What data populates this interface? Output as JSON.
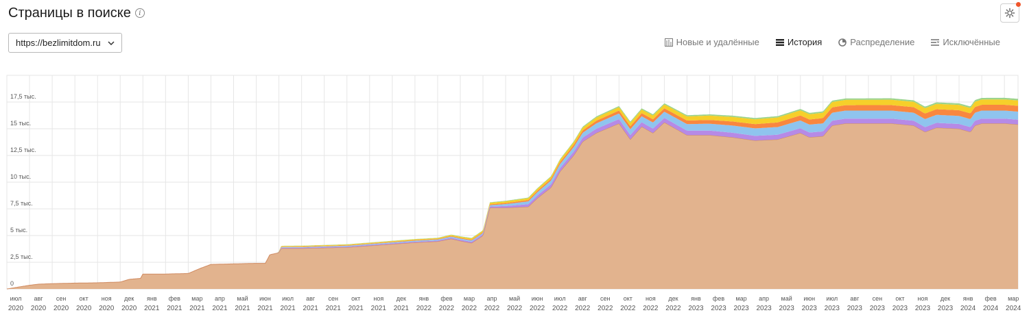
{
  "page": {
    "title": "Страницы в поиске"
  },
  "site_select": {
    "value": "https://bezlimitdom.ru"
  },
  "tabs": [
    {
      "label": "Новые и удалённые",
      "icon": "bar-chart-icon"
    },
    {
      "label": "История",
      "icon": "stacked-layers-icon",
      "active": true
    },
    {
      "label": "Распределение",
      "icon": "pie-chart-icon"
    },
    {
      "label": "Исключённые",
      "icon": "filter-list-icon"
    }
  ],
  "colors": {
    "base": "#e2b38e",
    "base_line": "#d08a60",
    "purple": "#b68ae6",
    "blue": "#8fc4ee",
    "orange": "#f9873f",
    "yellow": "#f6cf2a",
    "green": "#9bd38a",
    "grid": "#e6e6e6",
    "tick": "#555555"
  },
  "chart_data": {
    "type": "area",
    "stacked": true,
    "grid": true,
    "ylim": [
      0,
      20000
    ],
    "yticks": [
      0,
      2500,
      5000,
      7500,
      10000,
      12500,
      15000,
      17500
    ],
    "ytick_labels": [
      "0",
      "2,5 тыс.",
      "5 тыс.",
      "7,5 тыс.",
      "10 тыс.",
      "12,5 тыс.",
      "15 тыс.",
      "17,5 тыс."
    ],
    "x_ticks": [
      {
        "m": "июл",
        "y": "2020"
      },
      {
        "m": "авг",
        "y": "2020"
      },
      {
        "m": "сен",
        "y": "2020"
      },
      {
        "m": "окт",
        "y": "2020"
      },
      {
        "m": "ноя",
        "y": "2020"
      },
      {
        "m": "дек",
        "y": "2020"
      },
      {
        "m": "янв",
        "y": "2021"
      },
      {
        "m": "фев",
        "y": "2021"
      },
      {
        "m": "мар",
        "y": "2021"
      },
      {
        "m": "апр",
        "y": "2021"
      },
      {
        "m": "май",
        "y": "2021"
      },
      {
        "m": "июн",
        "y": "2021"
      },
      {
        "m": "июл",
        "y": "2021"
      },
      {
        "m": "авг",
        "y": "2021"
      },
      {
        "m": "сен",
        "y": "2021"
      },
      {
        "m": "окт",
        "y": "2021"
      },
      {
        "m": "ноя",
        "y": "2021"
      },
      {
        "m": "дек",
        "y": "2021"
      },
      {
        "m": "янв",
        "y": "2022"
      },
      {
        "m": "фев",
        "y": "2022"
      },
      {
        "m": "мар",
        "y": "2022"
      },
      {
        "m": "апр",
        "y": "2022"
      },
      {
        "m": "май",
        "y": "2022"
      },
      {
        "m": "июн",
        "y": "2022"
      },
      {
        "m": "июл",
        "y": "2022"
      },
      {
        "m": "авг",
        "y": "2022"
      },
      {
        "m": "сен",
        "y": "2022"
      },
      {
        "m": "окт",
        "y": "2022"
      },
      {
        "m": "ноя",
        "y": "2022"
      },
      {
        "m": "дек",
        "y": "2022"
      },
      {
        "m": "янв",
        "y": "2023"
      },
      {
        "m": "фев",
        "y": "2023"
      },
      {
        "m": "мар",
        "y": "2023"
      },
      {
        "m": "апр",
        "y": "2023"
      },
      {
        "m": "май",
        "y": "2023"
      },
      {
        "m": "июн",
        "y": "2023"
      },
      {
        "m": "июл",
        "y": "2023"
      },
      {
        "m": "авг",
        "y": "2023"
      },
      {
        "m": "сен",
        "y": "2023"
      },
      {
        "m": "окт",
        "y": "2023"
      },
      {
        "m": "ноя",
        "y": "2023"
      },
      {
        "m": "дек",
        "y": "2023"
      },
      {
        "m": "янв",
        "y": "2024"
      },
      {
        "m": "фев",
        "y": "2024"
      },
      {
        "m": "мар",
        "y": "2024"
      }
    ],
    "x_range": [
      0,
      44.6
    ],
    "series": [
      {
        "color": "base",
        "points": [
          [
            0,
            0
          ],
          [
            1.0,
            350
          ],
          [
            1.4,
            450
          ],
          [
            2,
            500
          ],
          [
            3,
            550
          ],
          [
            4,
            580
          ],
          [
            5,
            650
          ],
          [
            5.4,
            900
          ],
          [
            5.9,
            1000
          ],
          [
            6,
            1400
          ],
          [
            7,
            1400
          ],
          [
            8,
            1450
          ],
          [
            8.5,
            1900
          ],
          [
            9,
            2300
          ],
          [
            10,
            2350
          ],
          [
            11,
            2400
          ],
          [
            11.4,
            2400
          ],
          [
            11.6,
            3200
          ],
          [
            12,
            3400
          ],
          [
            12.1,
            3800
          ],
          [
            13,
            3800
          ],
          [
            14,
            3850
          ],
          [
            15,
            3900
          ],
          [
            16,
            4050
          ],
          [
            17,
            4200
          ],
          [
            18,
            4350
          ],
          [
            19,
            4450
          ],
          [
            19.6,
            4700
          ],
          [
            20,
            4500
          ],
          [
            20.5,
            4300
          ],
          [
            21,
            5000
          ],
          [
            21.3,
            7600
          ],
          [
            22,
            7600
          ],
          [
            23,
            7700
          ],
          [
            23.4,
            8500
          ],
          [
            24,
            9500
          ],
          [
            24.4,
            11000
          ],
          [
            25,
            12500
          ],
          [
            25.4,
            13800
          ],
          [
            26,
            14600
          ],
          [
            27,
            15500
          ],
          [
            27.5,
            14000
          ],
          [
            28,
            15200
          ],
          [
            28.5,
            14600
          ],
          [
            29,
            15600
          ],
          [
            30,
            14400
          ],
          [
            31,
            14400
          ],
          [
            32,
            14200
          ],
          [
            33,
            13900
          ],
          [
            34,
            14000
          ],
          [
            35,
            14600
          ],
          [
            35.4,
            14200
          ],
          [
            36,
            14300
          ],
          [
            36.4,
            15300
          ],
          [
            37,
            15500
          ],
          [
            38,
            15500
          ],
          [
            39,
            15500
          ],
          [
            40,
            15300
          ],
          [
            40.5,
            14700
          ],
          [
            41,
            15100
          ],
          [
            42,
            15000
          ],
          [
            42.5,
            14700
          ],
          [
            42.7,
            15300
          ],
          [
            43,
            15500
          ],
          [
            44,
            15500
          ],
          [
            44.6,
            15400
          ]
        ]
      },
      {
        "color": "purple",
        "points": [
          [
            0,
            0
          ],
          [
            11.9,
            0
          ],
          [
            12.1,
            60
          ],
          [
            19,
            80
          ],
          [
            20.5,
            120
          ],
          [
            21.3,
            120
          ],
          [
            24,
            300
          ],
          [
            26,
            400
          ],
          [
            36,
            450
          ],
          [
            44.6,
            450
          ]
        ]
      },
      {
        "color": "blue",
        "points": [
          [
            0,
            0
          ],
          [
            11.9,
            0
          ],
          [
            12.1,
            60
          ],
          [
            19,
            100
          ],
          [
            20.5,
            120
          ],
          [
            21.3,
            120
          ],
          [
            24,
            350
          ],
          [
            26,
            500
          ],
          [
            33,
            700
          ],
          [
            36,
            750
          ],
          [
            44.6,
            750
          ]
        ]
      },
      {
        "color": "orange",
        "points": [
          [
            0,
            0
          ],
          [
            11.9,
            0
          ],
          [
            12.1,
            40
          ],
          [
            19,
            50
          ],
          [
            21.3,
            80
          ],
          [
            24,
            150
          ],
          [
            26,
            250
          ],
          [
            33,
            400
          ],
          [
            36,
            500
          ],
          [
            44.6,
            550
          ]
        ]
      },
      {
        "color": "yellow",
        "points": [
          [
            0,
            0
          ],
          [
            11.9,
            0
          ],
          [
            12.1,
            60
          ],
          [
            19,
            80
          ],
          [
            21.3,
            150
          ],
          [
            24,
            200
          ],
          [
            26,
            300
          ],
          [
            33,
            450
          ],
          [
            36,
            500
          ],
          [
            44.6,
            500
          ]
        ]
      },
      {
        "color": "green",
        "points": [
          [
            0,
            0
          ],
          [
            11.9,
            0
          ],
          [
            12.1,
            20
          ],
          [
            19,
            30
          ],
          [
            24,
            60
          ],
          [
            26,
            100
          ],
          [
            44.6,
            150
          ]
        ]
      }
    ]
  }
}
